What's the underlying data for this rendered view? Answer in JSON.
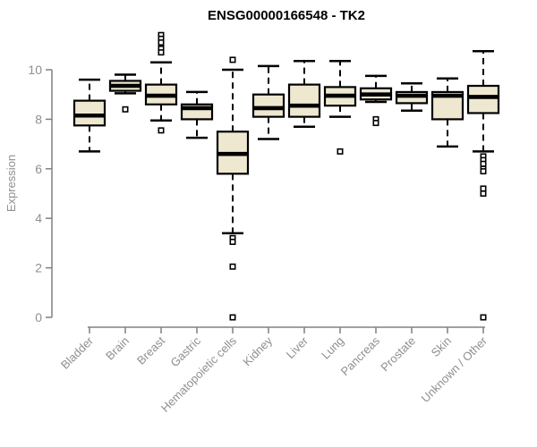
{
  "window": {
    "title": "ENSG00000166548 - TK2 expression boxplot"
  },
  "colors": {
    "box_fill": "#efe8d1",
    "box_stroke": "#000000",
    "median_color": "#000000",
    "whisker_color": "#000000",
    "axis_line_color": "#808080",
    "axis_text_color": "#8f8f8f",
    "title_color": "#000000",
    "background": "#ffffff"
  },
  "chart_data": {
    "type": "boxplot",
    "title": "ENSG00000166548 - TK2",
    "xlabel": "",
    "ylabel": "Expression",
    "ylim": [
      0,
      10
    ],
    "yticks": [
      0,
      2,
      4,
      6,
      8,
      10
    ],
    "grid": false,
    "legend": false,
    "categories": [
      "Bladder",
      "Brain",
      "Breast",
      "Gastric",
      "Hematopoietic cells",
      "Kidney",
      "Liver",
      "Lung",
      "Pancreas",
      "Prostate",
      "Skin",
      "Unknown / Other"
    ],
    "boxes": [
      {
        "category": "Bladder",
        "low": 6.7,
        "q1": 7.75,
        "median": 8.15,
        "q3": 8.75,
        "high": 9.6,
        "outliers": []
      },
      {
        "category": "Brain",
        "low": 9.05,
        "q1": 9.15,
        "median": 9.35,
        "q3": 9.55,
        "high": 9.8,
        "outliers": [
          8.4
        ]
      },
      {
        "category": "Breast",
        "low": 7.95,
        "q1": 8.6,
        "median": 8.95,
        "q3": 9.4,
        "high": 10.3,
        "outliers": [
          11.4,
          11.25,
          11.1,
          10.85,
          10.7,
          7.55
        ]
      },
      {
        "category": "Gastric",
        "low": 7.25,
        "q1": 8.0,
        "median": 8.45,
        "q3": 8.6,
        "high": 9.1,
        "outliers": []
      },
      {
        "category": "Hematopoietic cells",
        "low": 3.4,
        "q1": 5.8,
        "median": 6.6,
        "q3": 7.5,
        "high": 10.0,
        "outliers": [
          10.4,
          3.2,
          3.05,
          2.05,
          0.0
        ]
      },
      {
        "category": "Kidney",
        "low": 7.2,
        "q1": 8.1,
        "median": 8.45,
        "q3": 9.0,
        "high": 10.15,
        "outliers": []
      },
      {
        "category": "Liver",
        "low": 7.7,
        "q1": 8.1,
        "median": 8.55,
        "q3": 9.4,
        "high": 10.35,
        "outliers": []
      },
      {
        "category": "Lung",
        "low": 8.1,
        "q1": 8.55,
        "median": 8.95,
        "q3": 9.3,
        "high": 10.35,
        "outliers": [
          6.7
        ]
      },
      {
        "category": "Pancreas",
        "low": 8.7,
        "q1": 8.8,
        "median": 9.0,
        "q3": 9.25,
        "high": 9.75,
        "outliers": [
          8.0,
          7.85
        ]
      },
      {
        "category": "Prostate",
        "low": 8.35,
        "q1": 8.65,
        "median": 8.95,
        "q3": 9.1,
        "high": 9.45,
        "outliers": []
      },
      {
        "category": "Skin",
        "low": 6.9,
        "q1": 8.0,
        "median": 8.95,
        "q3": 9.1,
        "high": 9.65,
        "outliers": []
      },
      {
        "category": "Unknown / Other",
        "low": 6.7,
        "q1": 8.25,
        "median": 8.9,
        "q3": 9.35,
        "high": 10.75,
        "outliers": [
          6.5,
          6.35,
          6.2,
          6.0,
          5.9,
          5.2,
          5.0,
          0.0
        ]
      }
    ]
  }
}
